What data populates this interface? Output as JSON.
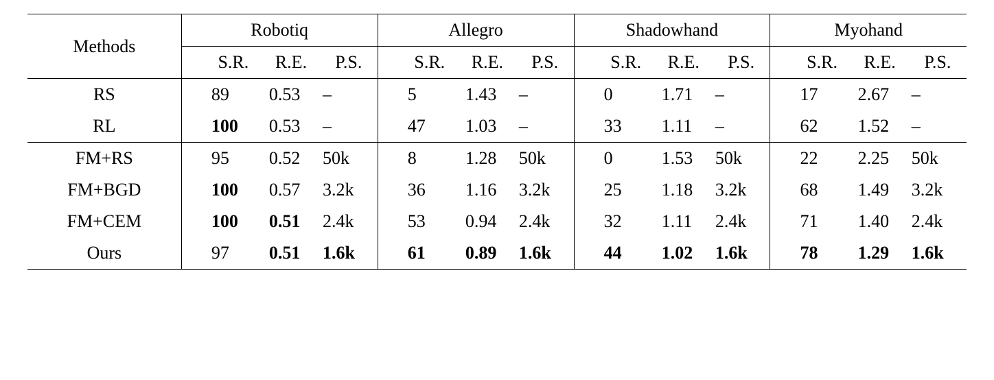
{
  "table": {
    "font_family": "Times New Roman",
    "font_size_pt": 26,
    "text_color": "#000000",
    "background_color": "#ffffff",
    "rule_color": "#000000",
    "methods_header": "Methods",
    "hands": [
      "Robotiq",
      "Allegro",
      "Shadowhand",
      "Myohand"
    ],
    "subheaders": [
      "S.R.",
      "R.E.",
      "P.S."
    ],
    "rows": [
      {
        "method": "RS",
        "vals": [
          {
            "sr": "89",
            "sr_bold": false,
            "re": "0.53",
            "re_bold": false,
            "ps": "–",
            "ps_bold": false
          },
          {
            "sr": "5",
            "sr_bold": false,
            "re": "1.43",
            "re_bold": false,
            "ps": "–",
            "ps_bold": false
          },
          {
            "sr": "0",
            "sr_bold": false,
            "re": "1.71",
            "re_bold": false,
            "ps": "–",
            "ps_bold": false
          },
          {
            "sr": "17",
            "sr_bold": false,
            "re": "2.67",
            "re_bold": false,
            "ps": "–",
            "ps_bold": false
          }
        ]
      },
      {
        "method": "RL",
        "vals": [
          {
            "sr": "100",
            "sr_bold": true,
            "re": "0.53",
            "re_bold": false,
            "ps": "–",
            "ps_bold": false
          },
          {
            "sr": "47",
            "sr_bold": false,
            "re": "1.03",
            "re_bold": false,
            "ps": "–",
            "ps_bold": false
          },
          {
            "sr": "33",
            "sr_bold": false,
            "re": "1.11",
            "re_bold": false,
            "ps": "–",
            "ps_bold": false
          },
          {
            "sr": "62",
            "sr_bold": false,
            "re": "1.52",
            "re_bold": false,
            "ps": "–",
            "ps_bold": false
          }
        ]
      },
      {
        "method": "FM+RS",
        "vals": [
          {
            "sr": "95",
            "sr_bold": false,
            "re": "0.52",
            "re_bold": false,
            "ps": "50k",
            "ps_bold": false
          },
          {
            "sr": "8",
            "sr_bold": false,
            "re": "1.28",
            "re_bold": false,
            "ps": "50k",
            "ps_bold": false
          },
          {
            "sr": "0",
            "sr_bold": false,
            "re": "1.53",
            "re_bold": false,
            "ps": "50k",
            "ps_bold": false
          },
          {
            "sr": "22",
            "sr_bold": false,
            "re": "2.25",
            "re_bold": false,
            "ps": "50k",
            "ps_bold": false
          }
        ]
      },
      {
        "method": "FM+BGD",
        "vals": [
          {
            "sr": "100",
            "sr_bold": true,
            "re": "0.57",
            "re_bold": false,
            "ps": "3.2k",
            "ps_bold": false
          },
          {
            "sr": "36",
            "sr_bold": false,
            "re": "1.16",
            "re_bold": false,
            "ps": "3.2k",
            "ps_bold": false
          },
          {
            "sr": "25",
            "sr_bold": false,
            "re": "1.18",
            "re_bold": false,
            "ps": "3.2k",
            "ps_bold": false
          },
          {
            "sr": "68",
            "sr_bold": false,
            "re": "1.49",
            "re_bold": false,
            "ps": "3.2k",
            "ps_bold": false
          }
        ]
      },
      {
        "method": "FM+CEM",
        "vals": [
          {
            "sr": "100",
            "sr_bold": true,
            "re": "0.51",
            "re_bold": true,
            "ps": "2.4k",
            "ps_bold": false
          },
          {
            "sr": "53",
            "sr_bold": false,
            "re": "0.94",
            "re_bold": false,
            "ps": "2.4k",
            "ps_bold": false
          },
          {
            "sr": "32",
            "sr_bold": false,
            "re": "1.11",
            "re_bold": false,
            "ps": "2.4k",
            "ps_bold": false
          },
          {
            "sr": "71",
            "sr_bold": false,
            "re": "1.40",
            "re_bold": false,
            "ps": "2.4k",
            "ps_bold": false
          }
        ]
      },
      {
        "method": "Ours",
        "vals": [
          {
            "sr": "97",
            "sr_bold": false,
            "re": "0.51",
            "re_bold": true,
            "ps": "1.6k",
            "ps_bold": true
          },
          {
            "sr": "61",
            "sr_bold": true,
            "re": "0.89",
            "re_bold": true,
            "ps": "1.6k",
            "ps_bold": true
          },
          {
            "sr": "44",
            "sr_bold": true,
            "re": "1.02",
            "re_bold": true,
            "ps": "1.6k",
            "ps_bold": true
          },
          {
            "sr": "78",
            "sr_bold": true,
            "re": "1.29",
            "re_bold": true,
            "ps": "1.6k",
            "ps_bold": true
          }
        ]
      }
    ],
    "section_breaks_after_row_idx": [
      1
    ]
  }
}
